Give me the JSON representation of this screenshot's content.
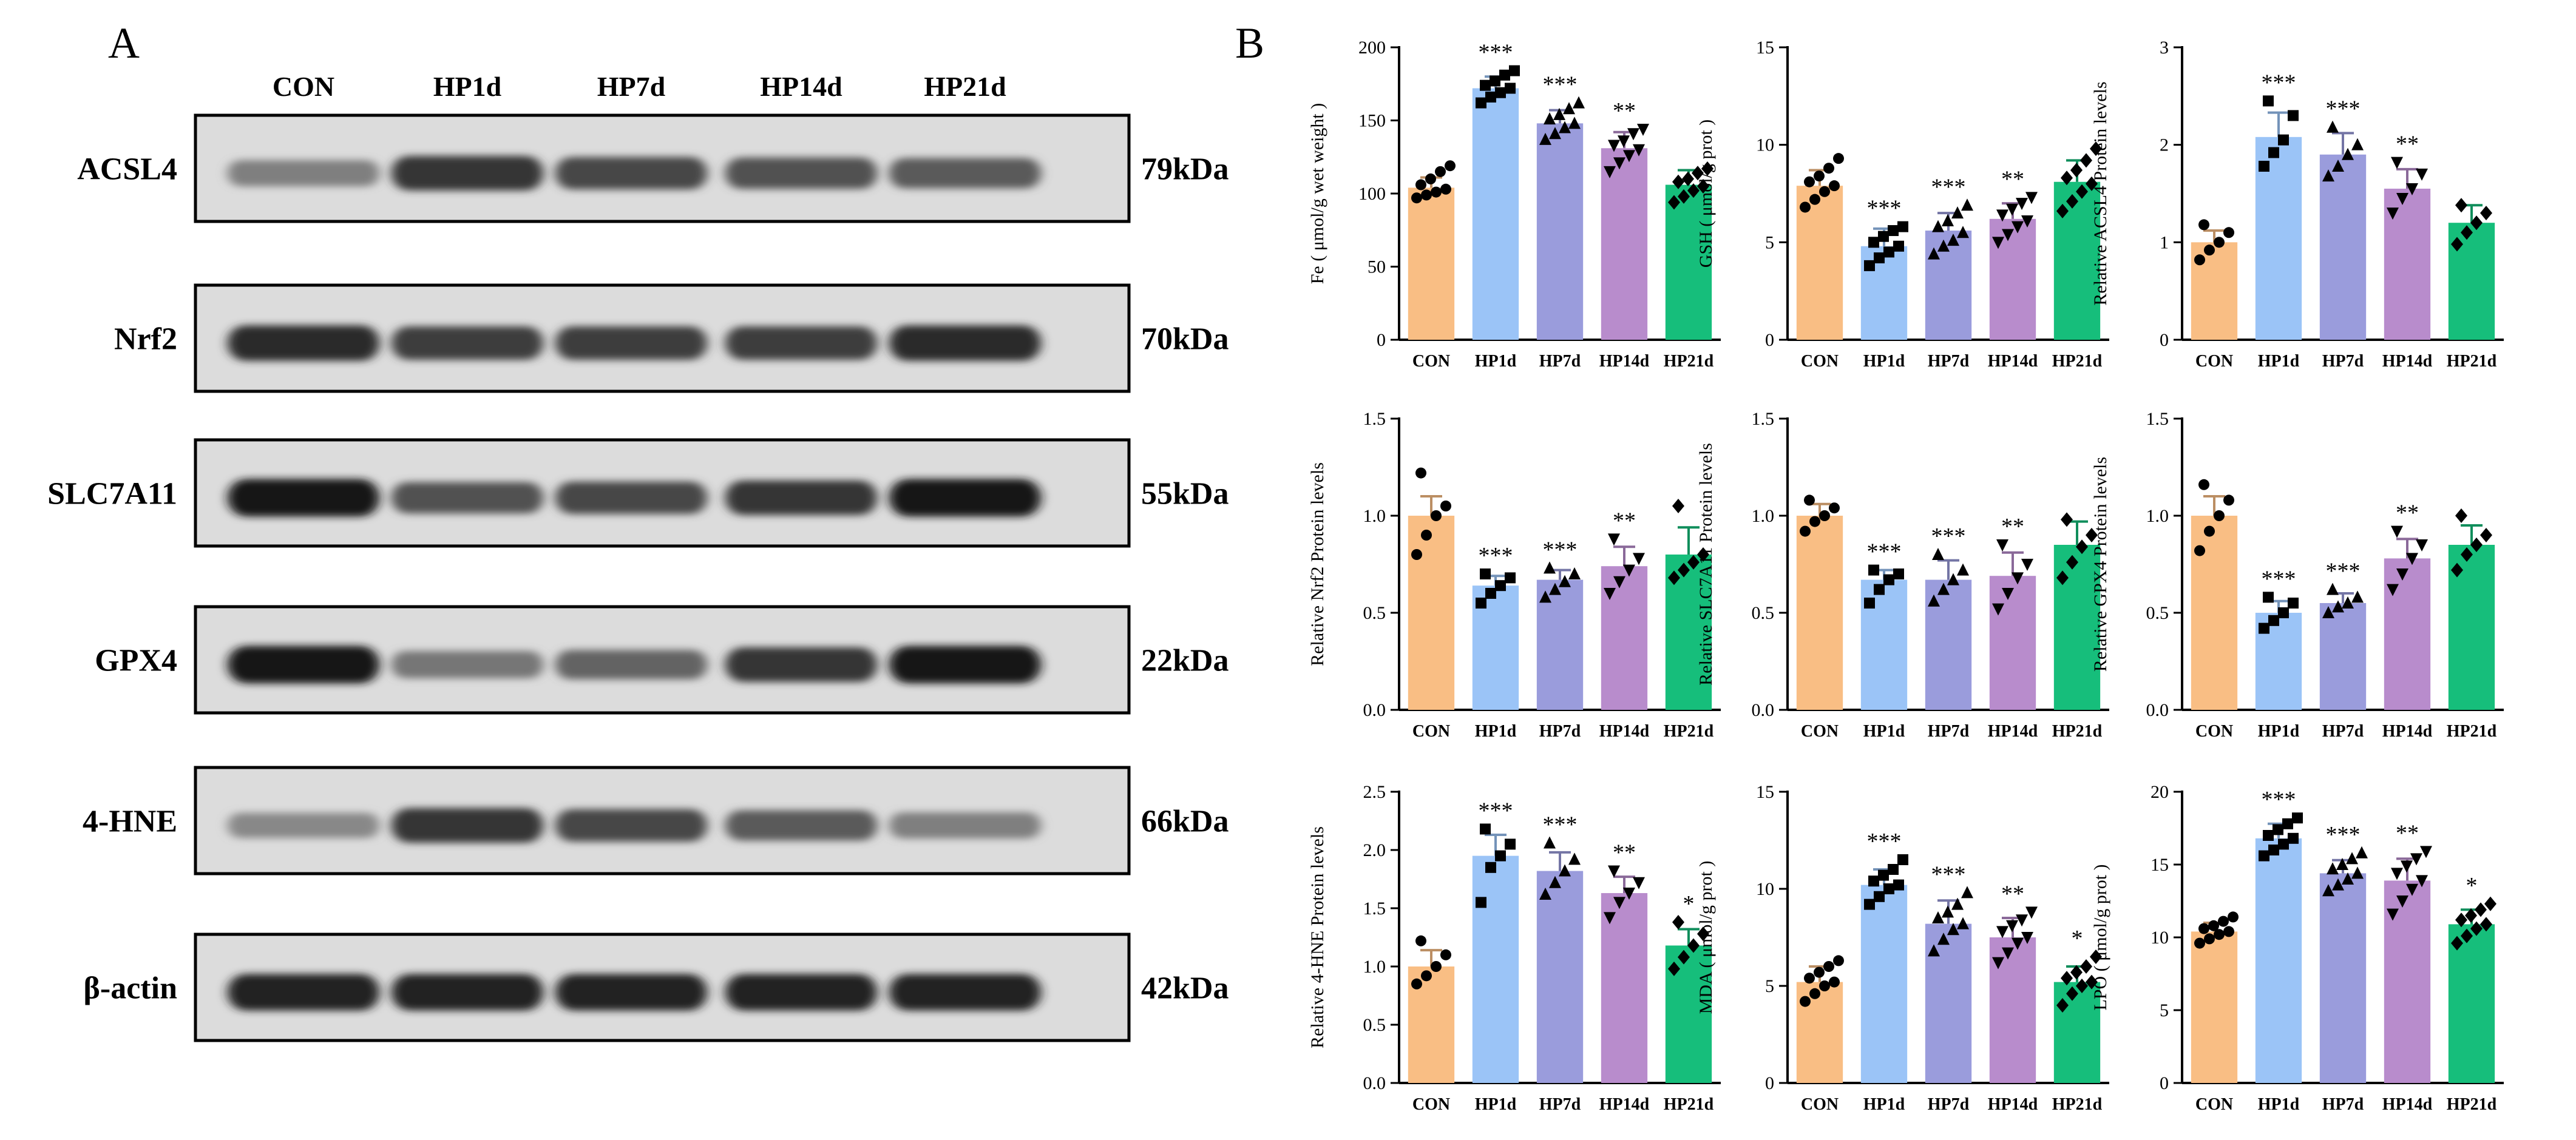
{
  "panel_a": {
    "label": "A",
    "lanes": [
      "CON",
      "HP1d",
      "HP7d",
      "HP14d",
      "HP21d"
    ],
    "blots": [
      {
        "protein": "ACSL4",
        "size": "79kDa",
        "intensity": [
          0.45,
          0.85,
          0.75,
          0.7,
          0.65
        ]
      },
      {
        "protein": "Nrf2",
        "size": "70kDa",
        "intensity": [
          0.9,
          0.8,
          0.8,
          0.8,
          0.9
        ]
      },
      {
        "protein": "SLC7A11",
        "size": "55kDa",
        "intensity": [
          1.0,
          0.7,
          0.75,
          0.85,
          1.0
        ]
      },
      {
        "protein": "GPX4",
        "size": "22kDa",
        "intensity": [
          1.0,
          0.5,
          0.6,
          0.85,
          1.0
        ]
      },
      {
        "protein": "4-HNE",
        "size": "66kDa",
        "intensity": [
          0.4,
          0.85,
          0.75,
          0.65,
          0.45
        ]
      },
      {
        "protein": "β-actin",
        "size": "42kDa",
        "intensity": [
          0.95,
          0.95,
          0.95,
          0.95,
          0.95
        ]
      }
    ]
  },
  "panel_b": {
    "label": "B"
  },
  "chart_data": [
    {
      "type": "bar",
      "ylabel": "Fe ( μmol/g wet weight )",
      "categories": [
        "CON",
        "HP1d",
        "HP7d",
        "HP14d",
        "HP21d"
      ],
      "values": [
        104,
        172,
        148,
        131,
        106
      ],
      "errors": [
        7,
        8,
        9,
        11,
        10
      ],
      "significance": [
        "",
        "***",
        "***",
        "**",
        ""
      ],
      "points": [
        [
          97,
          99,
          101,
          103,
          106,
          110,
          115,
          119
        ],
        [
          162,
          166,
          169,
          172,
          174,
          177,
          181,
          184
        ],
        [
          137,
          141,
          145,
          148,
          151,
          154,
          158,
          162
        ],
        [
          115,
          121,
          126,
          130,
          133,
          136,
          141,
          144
        ],
        [
          94,
          98,
          102,
          105,
          108,
          110,
          114,
          117
        ]
      ],
      "ylim": [
        0,
        200
      ],
      "yticks": [
        0,
        50,
        100,
        150,
        200
      ]
    },
    {
      "type": "bar",
      "ylabel": "GSH ( μmol/g prot )",
      "categories": [
        "CON",
        "HP1d",
        "HP7d",
        "HP14d",
        "HP21d"
      ],
      "values": [
        7.9,
        4.8,
        5.6,
        6.2,
        8.1
      ],
      "errors": [
        0.8,
        0.9,
        0.9,
        0.8,
        1.1
      ],
      "significance": [
        "",
        "***",
        "***",
        "**",
        ""
      ],
      "points": [
        [
          6.8,
          7.2,
          7.6,
          7.9,
          8.1,
          8.4,
          8.8,
          9.3
        ],
        [
          3.8,
          4.2,
          4.5,
          4.8,
          5.0,
          5.3,
          5.6,
          5.8
        ],
        [
          4.4,
          4.8,
          5.1,
          5.5,
          5.8,
          6.1,
          6.5,
          6.9
        ],
        [
          5.0,
          5.4,
          5.8,
          6.1,
          6.4,
          6.7,
          7.0,
          7.3
        ],
        [
          6.6,
          7.1,
          7.6,
          8.0,
          8.3,
          8.7,
          9.2,
          9.8
        ]
      ],
      "ylim": [
        0,
        15
      ],
      "yticks": [
        0,
        5,
        10,
        15
      ]
    },
    {
      "type": "bar",
      "ylabel": "Relative ACSL4 Protein levels",
      "categories": [
        "CON",
        "HP1d",
        "HP7d",
        "HP14d",
        "HP21d"
      ],
      "values": [
        1.0,
        2.08,
        1.9,
        1.55,
        1.2
      ],
      "errors": [
        0.12,
        0.25,
        0.22,
        0.2,
        0.18
      ],
      "significance": [
        "",
        "***",
        "***",
        "**",
        ""
      ],
      "points": [
        [
          0.82,
          0.92,
          1.0,
          1.1,
          1.18
        ],
        [
          1.78,
          1.92,
          2.05,
          2.3,
          2.45
        ],
        [
          1.68,
          1.78,
          1.9,
          2.0,
          2.18
        ],
        [
          1.3,
          1.45,
          1.55,
          1.7,
          1.82
        ],
        [
          0.98,
          1.1,
          1.2,
          1.3,
          1.38
        ]
      ],
      "ylim": [
        0,
        3
      ],
      "yticks": [
        0,
        1,
        2,
        3
      ]
    },
    {
      "type": "bar",
      "ylabel": "Relative Nrf2 Protein levels",
      "categories": [
        "CON",
        "HP1d",
        "HP7d",
        "HP14d",
        "HP21d"
      ],
      "values": [
        1.0,
        0.64,
        0.67,
        0.74,
        0.8
      ],
      "errors": [
        0.1,
        0.05,
        0.05,
        0.1,
        0.14
      ],
      "significance": [
        "",
        "***",
        "***",
        "**",
        ""
      ],
      "points": [
        [
          0.8,
          0.9,
          1.0,
          1.05,
          1.22
        ],
        [
          0.55,
          0.6,
          0.64,
          0.68,
          0.7
        ],
        [
          0.58,
          0.62,
          0.66,
          0.7,
          0.73
        ],
        [
          0.6,
          0.66,
          0.72,
          0.78,
          0.88
        ],
        [
          0.68,
          0.72,
          0.76,
          0.8,
          1.05
        ]
      ],
      "ylim": [
        0,
        1.5
      ],
      "yticks": [
        0,
        0.5,
        1.0,
        1.5
      ]
    },
    {
      "type": "bar",
      "ylabel": "Relative SLC7A11 Protein levels",
      "categories": [
        "CON",
        "HP1d",
        "HP7d",
        "HP14d",
        "HP21d"
      ],
      "values": [
        1.0,
        0.67,
        0.67,
        0.69,
        0.85
      ],
      "errors": [
        0.06,
        0.05,
        0.1,
        0.12,
        0.12
      ],
      "significance": [
        "",
        "***",
        "***",
        "**",
        ""
      ],
      "points": [
        [
          0.92,
          0.97,
          1.0,
          1.04,
          1.08
        ],
        [
          0.55,
          0.62,
          0.67,
          0.7,
          0.72
        ],
        [
          0.56,
          0.62,
          0.67,
          0.72,
          0.8
        ],
        [
          0.52,
          0.6,
          0.68,
          0.75,
          0.85
        ],
        [
          0.68,
          0.76,
          0.84,
          0.9,
          0.98
        ]
      ],
      "ylim": [
        0,
        1.5
      ],
      "yticks": [
        0,
        0.5,
        1.0,
        1.5
      ]
    },
    {
      "type": "bar",
      "ylabel": "Relative GPX4 Protein levels",
      "categories": [
        "CON",
        "HP1d",
        "HP7d",
        "HP14d",
        "HP21d"
      ],
      "values": [
        1.0,
        0.5,
        0.55,
        0.78,
        0.85
      ],
      "errors": [
        0.1,
        0.06,
        0.05,
        0.1,
        0.1
      ],
      "significance": [
        "",
        "***",
        "***",
        "**",
        ""
      ],
      "points": [
        [
          0.82,
          0.92,
          1.0,
          1.08,
          1.16
        ],
        [
          0.42,
          0.46,
          0.5,
          0.55,
          0.58
        ],
        [
          0.5,
          0.53,
          0.55,
          0.58,
          0.62
        ],
        [
          0.62,
          0.7,
          0.78,
          0.85,
          0.92
        ],
        [
          0.72,
          0.8,
          0.85,
          0.9,
          1.0
        ]
      ],
      "ylim": [
        0,
        1.5
      ],
      "yticks": [
        0,
        0.5,
        1.0,
        1.5
      ]
    },
    {
      "type": "bar",
      "ylabel": "Relative 4-HNE Protein levels",
      "categories": [
        "CON",
        "HP1d",
        "HP7d",
        "HP14d",
        "HP21d"
      ],
      "values": [
        1.0,
        1.95,
        1.82,
        1.63,
        1.18
      ],
      "errors": [
        0.14,
        0.18,
        0.16,
        0.14,
        0.14
      ],
      "significance": [
        "",
        "***",
        "***",
        "**",
        "*"
      ],
      "points": [
        [
          0.85,
          0.92,
          1.0,
          1.1,
          1.22
        ],
        [
          1.55,
          1.85,
          1.95,
          2.05,
          2.18
        ],
        [
          1.62,
          1.72,
          1.82,
          1.92,
          2.06
        ],
        [
          1.42,
          1.55,
          1.63,
          1.72,
          1.82
        ],
        [
          0.98,
          1.08,
          1.18,
          1.28,
          1.38
        ]
      ],
      "ylim": [
        0,
        2.5
      ],
      "yticks": [
        0,
        0.5,
        1.0,
        1.5,
        2.0,
        2.5
      ]
    },
    {
      "type": "bar",
      "ylabel": "MDA ( μmol/g prot )",
      "categories": [
        "CON",
        "HP1d",
        "HP7d",
        "HP14d",
        "HP21d"
      ],
      "values": [
        5.2,
        10.2,
        8.2,
        7.5,
        5.2
      ],
      "errors": [
        0.8,
        0.8,
        1.2,
        1.0,
        0.8
      ],
      "significance": [
        "",
        "***",
        "***",
        "**",
        "*"
      ],
      "points": [
        [
          4.2,
          4.6,
          5.0,
          5.2,
          5.4,
          5.7,
          6.0,
          6.3
        ],
        [
          9.2,
          9.6,
          10.0,
          10.2,
          10.4,
          10.7,
          11.0,
          11.5
        ],
        [
          6.8,
          7.4,
          7.9,
          8.2,
          8.5,
          8.8,
          9.2,
          9.8
        ],
        [
          6.2,
          6.7,
          7.2,
          7.5,
          7.8,
          8.1,
          8.4,
          8.8
        ],
        [
          4.0,
          4.6,
          5.0,
          5.2,
          5.4,
          5.7,
          6.0,
          6.5
        ]
      ],
      "ylim": [
        0,
        15
      ],
      "yticks": [
        0,
        5,
        10,
        15
      ]
    },
    {
      "type": "bar",
      "ylabel": "LPO ( μmol/g prot )",
      "categories": [
        "CON",
        "HP1d",
        "HP7d",
        "HP14d",
        "HP21d"
      ],
      "values": [
        10.4,
        16.8,
        14.4,
        13.9,
        10.9
      ],
      "errors": [
        0.6,
        1.0,
        0.9,
        1.5,
        1.0
      ],
      "significance": [
        "",
        "***",
        "***",
        "**",
        "*"
      ],
      "points": [
        [
          9.6,
          9.9,
          10.2,
          10.4,
          10.6,
          10.8,
          11.1,
          11.4
        ],
        [
          15.6,
          16.0,
          16.4,
          16.8,
          17.0,
          17.4,
          17.8,
          18.2
        ],
        [
          13.2,
          13.6,
          14.0,
          14.4,
          14.7,
          15.0,
          15.4,
          15.8
        ],
        [
          11.6,
          12.5,
          13.3,
          13.9,
          14.4,
          14.9,
          15.4,
          15.9
        ],
        [
          9.6,
          10.1,
          10.6,
          10.9,
          11.2,
          11.5,
          11.9,
          12.3
        ]
      ],
      "ylim": [
        0,
        20
      ],
      "yticks": [
        0,
        5,
        10,
        15,
        20
      ]
    }
  ],
  "colors": {
    "bars": [
      "#F9BE84",
      "#9BC4F7",
      "#9A9CDC",
      "#B88CCC",
      "#16BE7B"
    ],
    "axis": "#000000",
    "markers": "#000000"
  }
}
